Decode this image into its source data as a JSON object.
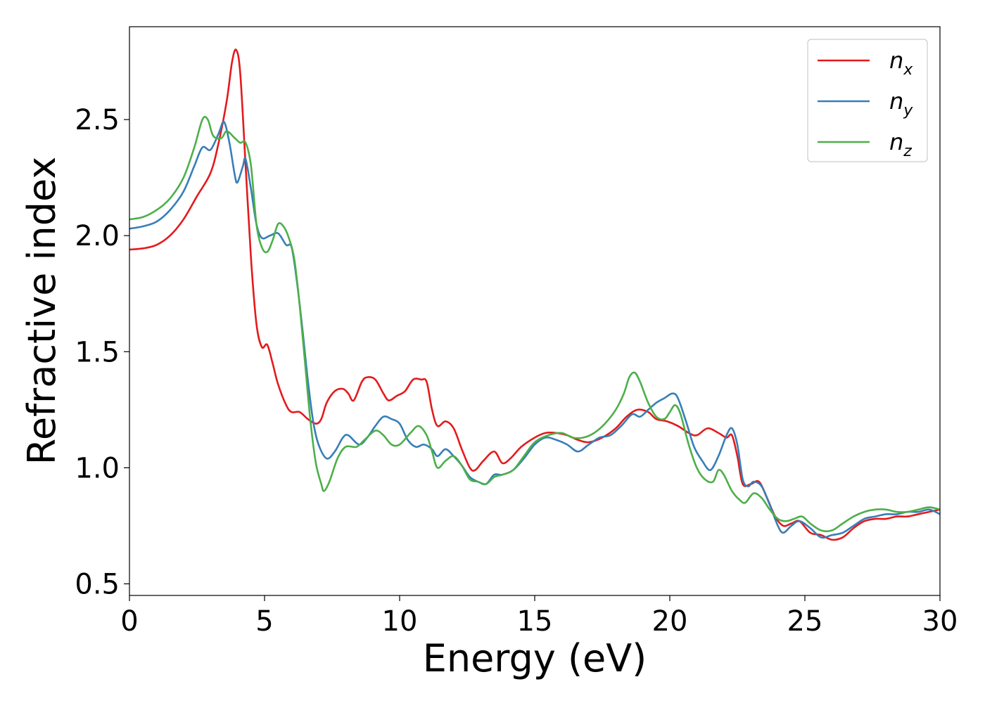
{
  "chart_data": {
    "type": "line",
    "xlabel": "Energy (eV)",
    "ylabel": "Refractive index",
    "xlim": [
      0,
      30
    ],
    "ylim": [
      0.45,
      2.9
    ],
    "xticks": [
      0,
      5,
      10,
      15,
      20,
      25,
      30
    ],
    "xtick_labels": [
      "0",
      "5",
      "10",
      "15",
      "20",
      "25",
      "30"
    ],
    "yticks": [
      0.5,
      1.0,
      1.5,
      2.0,
      2.5
    ],
    "ytick_labels": [
      "0.5",
      "1.0",
      "1.5",
      "2.0",
      "2.5"
    ],
    "grid": false,
    "legend_position": "top-right",
    "series": [
      {
        "name": "n_x",
        "legend_base": "n",
        "legend_sub": "x",
        "color": "#e41a1c",
        "points": [
          [
            0.0,
            1.94
          ],
          [
            0.5,
            1.945
          ],
          [
            1.0,
            1.96
          ],
          [
            1.5,
            2.0
          ],
          [
            2.0,
            2.07
          ],
          [
            2.5,
            2.17
          ],
          [
            3.0,
            2.27
          ],
          [
            3.3,
            2.4
          ],
          [
            3.6,
            2.58
          ],
          [
            3.8,
            2.75
          ],
          [
            3.95,
            2.8
          ],
          [
            4.1,
            2.7
          ],
          [
            4.3,
            2.3
          ],
          [
            4.5,
            1.9
          ],
          [
            4.7,
            1.62
          ],
          [
            4.9,
            1.52
          ],
          [
            5.1,
            1.53
          ],
          [
            5.3,
            1.45
          ],
          [
            5.5,
            1.36
          ],
          [
            5.8,
            1.27
          ],
          [
            6.0,
            1.24
          ],
          [
            6.3,
            1.24
          ],
          [
            6.6,
            1.21
          ],
          [
            6.9,
            1.19
          ],
          [
            7.1,
            1.21
          ],
          [
            7.3,
            1.28
          ],
          [
            7.6,
            1.33
          ],
          [
            7.9,
            1.34
          ],
          [
            8.1,
            1.32
          ],
          [
            8.3,
            1.29
          ],
          [
            8.6,
            1.37
          ],
          [
            8.8,
            1.39
          ],
          [
            9.1,
            1.38
          ],
          [
            9.4,
            1.32
          ],
          [
            9.6,
            1.29
          ],
          [
            9.9,
            1.31
          ],
          [
            10.2,
            1.33
          ],
          [
            10.5,
            1.38
          ],
          [
            10.8,
            1.38
          ],
          [
            11.0,
            1.37
          ],
          [
            11.2,
            1.25
          ],
          [
            11.4,
            1.18
          ],
          [
            11.7,
            1.2
          ],
          [
            12.0,
            1.17
          ],
          [
            12.3,
            1.08
          ],
          [
            12.6,
            1.0
          ],
          [
            12.8,
            0.99
          ],
          [
            13.1,
            1.03
          ],
          [
            13.5,
            1.07
          ],
          [
            13.8,
            1.02
          ],
          [
            14.1,
            1.04
          ],
          [
            14.5,
            1.09
          ],
          [
            15.0,
            1.13
          ],
          [
            15.4,
            1.15
          ],
          [
            15.8,
            1.15
          ],
          [
            16.2,
            1.14
          ],
          [
            16.6,
            1.12
          ],
          [
            17.0,
            1.11
          ],
          [
            17.5,
            1.13
          ],
          [
            18.0,
            1.17
          ],
          [
            18.4,
            1.22
          ],
          [
            18.8,
            1.25
          ],
          [
            19.2,
            1.24
          ],
          [
            19.5,
            1.21
          ],
          [
            19.9,
            1.2
          ],
          [
            20.3,
            1.18
          ],
          [
            20.7,
            1.15
          ],
          [
            21.0,
            1.14
          ],
          [
            21.4,
            1.17
          ],
          [
            21.8,
            1.15
          ],
          [
            22.1,
            1.13
          ],
          [
            22.3,
            1.14
          ],
          [
            22.5,
            1.05
          ],
          [
            22.7,
            0.93
          ],
          [
            23.0,
            0.93
          ],
          [
            23.3,
            0.94
          ],
          [
            23.6,
            0.87
          ],
          [
            23.9,
            0.79
          ],
          [
            24.2,
            0.75
          ],
          [
            24.5,
            0.76
          ],
          [
            24.8,
            0.77
          ],
          [
            25.2,
            0.72
          ],
          [
            25.6,
            0.71
          ],
          [
            26.0,
            0.69
          ],
          [
            26.4,
            0.7
          ],
          [
            26.8,
            0.74
          ],
          [
            27.2,
            0.77
          ],
          [
            27.6,
            0.78
          ],
          [
            28.0,
            0.78
          ],
          [
            28.4,
            0.79
          ],
          [
            28.8,
            0.79
          ],
          [
            29.2,
            0.8
          ],
          [
            29.6,
            0.81
          ],
          [
            30.0,
            0.82
          ]
        ]
      },
      {
        "name": "n_y",
        "legend_base": "n",
        "legend_sub": "y",
        "color": "#377eb8",
        "points": [
          [
            0.0,
            2.03
          ],
          [
            0.5,
            2.04
          ],
          [
            1.0,
            2.06
          ],
          [
            1.5,
            2.11
          ],
          [
            2.0,
            2.19
          ],
          [
            2.4,
            2.3
          ],
          [
            2.7,
            2.38
          ],
          [
            3.0,
            2.37
          ],
          [
            3.3,
            2.44
          ],
          [
            3.5,
            2.49
          ],
          [
            3.7,
            2.4
          ],
          [
            3.9,
            2.26
          ],
          [
            4.0,
            2.23
          ],
          [
            4.2,
            2.3
          ],
          [
            4.3,
            2.33
          ],
          [
            4.5,
            2.2
          ],
          [
            4.7,
            2.05
          ],
          [
            4.9,
            1.99
          ],
          [
            5.2,
            2.0
          ],
          [
            5.5,
            2.01
          ],
          [
            5.8,
            1.96
          ],
          [
            6.0,
            1.95
          ],
          [
            6.2,
            1.8
          ],
          [
            6.4,
            1.6
          ],
          [
            6.6,
            1.38
          ],
          [
            6.8,
            1.2
          ],
          [
            7.0,
            1.1
          ],
          [
            7.3,
            1.04
          ],
          [
            7.6,
            1.07
          ],
          [
            7.9,
            1.13
          ],
          [
            8.1,
            1.14
          ],
          [
            8.5,
            1.1
          ],
          [
            8.8,
            1.13
          ],
          [
            9.1,
            1.18
          ],
          [
            9.4,
            1.22
          ],
          [
            9.7,
            1.21
          ],
          [
            10.0,
            1.19
          ],
          [
            10.3,
            1.12
          ],
          [
            10.6,
            1.09
          ],
          [
            10.9,
            1.1
          ],
          [
            11.2,
            1.08
          ],
          [
            11.4,
            1.05
          ],
          [
            11.7,
            1.08
          ],
          [
            12.0,
            1.05
          ],
          [
            12.3,
            1.01
          ],
          [
            12.6,
            0.96
          ],
          [
            12.9,
            0.94
          ],
          [
            13.2,
            0.93
          ],
          [
            13.5,
            0.97
          ],
          [
            13.8,
            0.97
          ],
          [
            14.2,
            0.99
          ],
          [
            14.6,
            1.04
          ],
          [
            15.0,
            1.1
          ],
          [
            15.4,
            1.13
          ],
          [
            15.8,
            1.12
          ],
          [
            16.2,
            1.1
          ],
          [
            16.6,
            1.07
          ],
          [
            17.0,
            1.1
          ],
          [
            17.4,
            1.13
          ],
          [
            17.8,
            1.14
          ],
          [
            18.2,
            1.18
          ],
          [
            18.6,
            1.23
          ],
          [
            18.9,
            1.22
          ],
          [
            19.2,
            1.25
          ],
          [
            19.5,
            1.28
          ],
          [
            19.8,
            1.3
          ],
          [
            20.1,
            1.32
          ],
          [
            20.3,
            1.3
          ],
          [
            20.6,
            1.2
          ],
          [
            20.9,
            1.09
          ],
          [
            21.2,
            1.03
          ],
          [
            21.5,
            0.99
          ],
          [
            21.8,
            1.05
          ],
          [
            22.1,
            1.14
          ],
          [
            22.3,
            1.17
          ],
          [
            22.5,
            1.1
          ],
          [
            22.7,
            0.95
          ],
          [
            22.9,
            0.92
          ],
          [
            23.1,
            0.94
          ],
          [
            23.4,
            0.92
          ],
          [
            23.7,
            0.84
          ],
          [
            24.0,
            0.75
          ],
          [
            24.2,
            0.72
          ],
          [
            24.5,
            0.75
          ],
          [
            24.8,
            0.77
          ],
          [
            25.2,
            0.74
          ],
          [
            25.6,
            0.7
          ],
          [
            26.0,
            0.71
          ],
          [
            26.4,
            0.72
          ],
          [
            26.8,
            0.75
          ],
          [
            27.2,
            0.78
          ],
          [
            27.6,
            0.79
          ],
          [
            28.0,
            0.8
          ],
          [
            28.4,
            0.8
          ],
          [
            28.8,
            0.81
          ],
          [
            29.2,
            0.81
          ],
          [
            29.6,
            0.82
          ],
          [
            30.0,
            0.8
          ]
        ]
      },
      {
        "name": "n_z",
        "legend_base": "n",
        "legend_sub": "z",
        "color": "#4daf4a",
        "points": [
          [
            0.0,
            2.07
          ],
          [
            0.5,
            2.08
          ],
          [
            1.0,
            2.11
          ],
          [
            1.5,
            2.16
          ],
          [
            2.0,
            2.25
          ],
          [
            2.4,
            2.38
          ],
          [
            2.7,
            2.5
          ],
          [
            2.9,
            2.5
          ],
          [
            3.1,
            2.43
          ],
          [
            3.4,
            2.42
          ],
          [
            3.6,
            2.45
          ],
          [
            3.9,
            2.42
          ],
          [
            4.1,
            2.4
          ],
          [
            4.3,
            2.4
          ],
          [
            4.5,
            2.3
          ],
          [
            4.7,
            2.05
          ],
          [
            4.9,
            1.95
          ],
          [
            5.1,
            1.93
          ],
          [
            5.3,
            1.98
          ],
          [
            5.5,
            2.05
          ],
          [
            5.7,
            2.04
          ],
          [
            5.9,
            1.99
          ],
          [
            6.1,
            1.9
          ],
          [
            6.3,
            1.7
          ],
          [
            6.5,
            1.45
          ],
          [
            6.7,
            1.2
          ],
          [
            6.9,
            1.02
          ],
          [
            7.1,
            0.93
          ],
          [
            7.2,
            0.9
          ],
          [
            7.4,
            0.94
          ],
          [
            7.7,
            1.04
          ],
          [
            8.0,
            1.09
          ],
          [
            8.4,
            1.09
          ],
          [
            8.7,
            1.12
          ],
          [
            9.1,
            1.16
          ],
          [
            9.4,
            1.14
          ],
          [
            9.7,
            1.1
          ],
          [
            10.0,
            1.1
          ],
          [
            10.4,
            1.15
          ],
          [
            10.7,
            1.18
          ],
          [
            11.0,
            1.14
          ],
          [
            11.2,
            1.07
          ],
          [
            11.4,
            1.0
          ],
          [
            11.7,
            1.03
          ],
          [
            12.0,
            1.05
          ],
          [
            12.3,
            1.01
          ],
          [
            12.6,
            0.95
          ],
          [
            12.9,
            0.94
          ],
          [
            13.2,
            0.93
          ],
          [
            13.5,
            0.96
          ],
          [
            13.8,
            0.97
          ],
          [
            14.2,
            0.99
          ],
          [
            14.6,
            1.05
          ],
          [
            15.0,
            1.11
          ],
          [
            15.5,
            1.14
          ],
          [
            16.0,
            1.15
          ],
          [
            16.4,
            1.13
          ],
          [
            16.8,
            1.13
          ],
          [
            17.2,
            1.15
          ],
          [
            17.6,
            1.19
          ],
          [
            18.0,
            1.25
          ],
          [
            18.3,
            1.32
          ],
          [
            18.5,
            1.39
          ],
          [
            18.7,
            1.41
          ],
          [
            18.9,
            1.37
          ],
          [
            19.2,
            1.28
          ],
          [
            19.5,
            1.22
          ],
          [
            19.8,
            1.21
          ],
          [
            20.0,
            1.24
          ],
          [
            20.2,
            1.27
          ],
          [
            20.4,
            1.23
          ],
          [
            20.7,
            1.1
          ],
          [
            21.0,
            1.0
          ],
          [
            21.3,
            0.95
          ],
          [
            21.6,
            0.94
          ],
          [
            21.8,
            0.99
          ],
          [
            22.0,
            0.97
          ],
          [
            22.3,
            0.9
          ],
          [
            22.6,
            0.86
          ],
          [
            22.8,
            0.85
          ],
          [
            23.1,
            0.89
          ],
          [
            23.4,
            0.87
          ],
          [
            23.7,
            0.82
          ],
          [
            24.0,
            0.78
          ],
          [
            24.3,
            0.77
          ],
          [
            24.6,
            0.78
          ],
          [
            24.9,
            0.79
          ],
          [
            25.2,
            0.76
          ],
          [
            25.6,
            0.73
          ],
          [
            26.0,
            0.73
          ],
          [
            26.4,
            0.76
          ],
          [
            26.8,
            0.79
          ],
          [
            27.2,
            0.81
          ],
          [
            27.6,
            0.82
          ],
          [
            28.0,
            0.82
          ],
          [
            28.4,
            0.81
          ],
          [
            28.8,
            0.81
          ],
          [
            29.2,
            0.82
          ],
          [
            29.6,
            0.83
          ],
          [
            30.0,
            0.82
          ]
        ]
      }
    ]
  }
}
